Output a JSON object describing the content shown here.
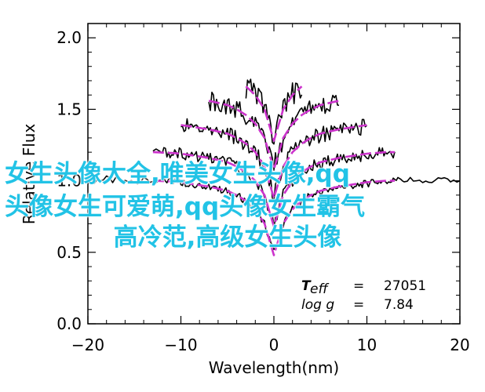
{
  "chart_data": {
    "type": "line",
    "xlabel": "Wavelength(nm)",
    "ylabel": "Relative Flux",
    "xlim": [
      -20,
      20
    ],
    "ylim": [
      0.0,
      2.1
    ],
    "x_ticks": [
      "-20",
      "-10",
      "0",
      "10",
      "20"
    ],
    "y_ticks": [
      "0.0",
      "0.5",
      "1.0",
      "1.5",
      "2.0"
    ],
    "grid": false,
    "series": [
      {
        "color": "#000000",
        "style": "observed",
        "offsets": [
          0.0,
          0.2,
          0.4,
          0.6,
          0.8
        ],
        "x": [
          -20,
          -18,
          -16,
          -14,
          -12,
          -11,
          -10,
          -9,
          -8,
          -7,
          -6,
          -5,
          -4,
          -3,
          -2,
          -1,
          0,
          1,
          2,
          3,
          4,
          5,
          6,
          7,
          8,
          9,
          10,
          11,
          12,
          13,
          14,
          16,
          18,
          20
        ],
        "y": [
          1.0,
          1.01,
          0.99,
          1.0,
          1.0,
          1.0,
          0.99,
          0.98,
          0.97,
          0.96,
          0.94,
          0.93,
          0.9,
          0.86,
          0.8,
          0.7,
          0.5,
          0.7,
          0.8,
          0.86,
          0.9,
          0.92,
          0.94,
          0.95,
          0.96,
          0.97,
          0.98,
          0.99,
          1.0,
          1.0,
          1.01,
          0.99,
          1.0,
          1.0
        ]
      },
      {
        "color": "#cc33cc",
        "style": "model",
        "offsets": [
          0.0,
          0.2,
          0.4,
          0.6,
          0.8
        ],
        "x": [
          -13,
          -11,
          -10,
          -9,
          -8,
          -7,
          -6,
          -5,
          -4,
          -3,
          -2,
          -1,
          0,
          1,
          2,
          3,
          4,
          5,
          6,
          7,
          8,
          9,
          10,
          11,
          12,
          13
        ],
        "y": [
          1.0,
          0.995,
          0.99,
          0.98,
          0.97,
          0.96,
          0.945,
          0.93,
          0.9,
          0.86,
          0.8,
          0.7,
          0.48,
          0.7,
          0.8,
          0.86,
          0.9,
          0.93,
          0.945,
          0.96,
          0.97,
          0.98,
          0.99,
          0.995,
          1.0,
          1.0
        ]
      }
    ],
    "annotations": [
      {
        "label": "T",
        "subscript": "eff",
        "eq": "=",
        "value": "27051"
      },
      {
        "label": "log g",
        "eq": "=",
        "value": "7.84"
      }
    ]
  },
  "overlay_text": {
    "line1": "女生头像大全,唯美女生头像,qq",
    "line2": "头像女生可爱萌,qq头像女生霸气",
    "line3": "高冷范,高级女生头像"
  }
}
